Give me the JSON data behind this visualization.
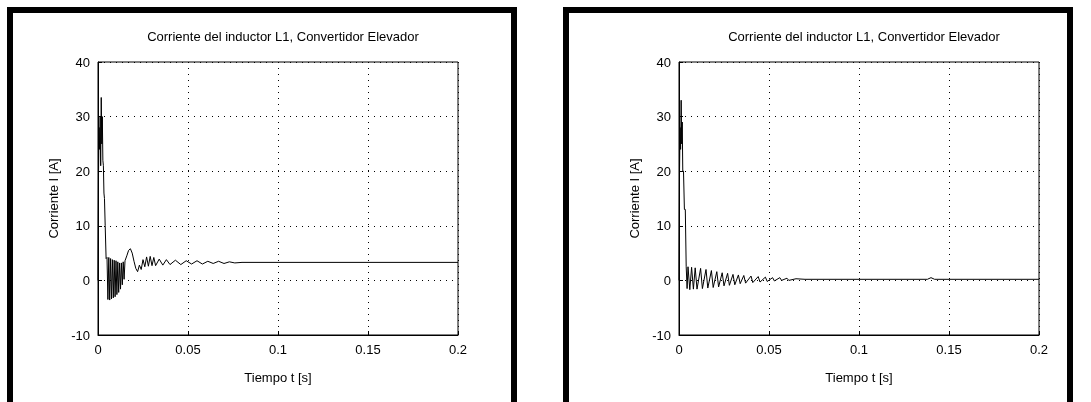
{
  "chart_data": [
    {
      "type": "line",
      "title": "Corriente del inductor L1, Convertidor Elevador",
      "xlabel": "Tiempo t [s]",
      "ylabel": "Corriente I [A]",
      "xlim": [
        0,
        0.2
      ],
      "xticks": [
        0,
        0.05,
        0.1,
        0.15,
        0.2
      ],
      "ylim": [
        -10,
        40
      ],
      "yticks": [
        -10,
        0,
        10,
        20,
        30,
        40
      ],
      "grid": true,
      "marker": "none",
      "line_style": "solid",
      "series": [
        {
          "color": "#000000",
          "x": [
            0,
            0.0003,
            0.0006,
            0.0009,
            0.0012,
            0.0015,
            0.0018,
            0.0021,
            0.0024,
            0.0027,
            0.003,
            0.0033,
            0.0036,
            0.004,
            0.0045,
            0.005,
            0.0055,
            0.006,
            0.0065,
            0.007,
            0.0075,
            0.008,
            0.0085,
            0.009,
            0.0095,
            0.01,
            0.0105,
            0.011,
            0.0115,
            0.012,
            0.0125,
            0.013,
            0.0135,
            0.014,
            0.0145,
            0.015,
            0.016,
            0.017,
            0.018,
            0.019,
            0.02,
            0.021,
            0.022,
            0.023,
            0.024,
            0.025,
            0.026,
            0.027,
            0.028,
            0.029,
            0.03,
            0.031,
            0.032,
            0.034,
            0.036,
            0.038,
            0.04,
            0.043,
            0.046,
            0.049,
            0.052,
            0.055,
            0.058,
            0.061,
            0.064,
            0.067,
            0.07,
            0.073,
            0.076,
            0.08,
            0.2
          ],
          "values": [
            0,
            20,
            28,
            24,
            30,
            21,
            33.5,
            25,
            30,
            22,
            21,
            16,
            15,
            10,
            4,
            4.2,
            -3.5,
            4.2,
            -3.6,
            4,
            -3.4,
            3.8,
            -3.2,
            3.7,
            -3,
            3.6,
            -2.6,
            3.4,
            -2.2,
            3.2,
            -1.6,
            3.2,
            -0.8,
            3.4,
            0.2,
            3.6,
            4.5,
            5.5,
            5.8,
            5,
            3.5,
            2.2,
            1.6,
            2.8,
            2,
            3.8,
            2.5,
            4.3,
            2.6,
            4.4,
            2.7,
            4.2,
            2.7,
            3.9,
            2.8,
            3.8,
            2.9,
            3.7,
            2.9,
            3.6,
            3,
            3.6,
            3,
            3.5,
            3.1,
            3.5,
            3.1,
            3.4,
            3.2,
            3.3,
            3.3
          ]
        }
      ]
    },
    {
      "type": "line",
      "title": "Corriente del inductor L1, Convertidor Elevador",
      "xlabel": "Tiempo t [s]",
      "ylabel": "Corriente I [A]",
      "xlim": [
        0,
        0.2
      ],
      "xticks": [
        0,
        0.05,
        0.1,
        0.15,
        0.2
      ],
      "ylim": [
        -10,
        40
      ],
      "yticks": [
        -10,
        0,
        10,
        20,
        30,
        40
      ],
      "grid": true,
      "marker": "none",
      "line_style": "solid",
      "series": [
        {
          "color": "#000000",
          "x": [
            0,
            0.0003,
            0.0006,
            0.0009,
            0.0012,
            0.0015,
            0.0018,
            0.0021,
            0.0025,
            0.003,
            0.0035,
            0.004,
            0.0045,
            0.005,
            0.006,
            0.007,
            0.008,
            0.009,
            0.01,
            0.012,
            0.013,
            0.015,
            0.016,
            0.018,
            0.019,
            0.021,
            0.022,
            0.024,
            0.025,
            0.027,
            0.028,
            0.03,
            0.031,
            0.033,
            0.034,
            0.036,
            0.037,
            0.04,
            0.041,
            0.044,
            0.045,
            0.048,
            0.049,
            0.052,
            0.053,
            0.056,
            0.057,
            0.06,
            0.061,
            0.065,
            0.07,
            0.138,
            0.14,
            0.142,
            0.2
          ],
          "values": [
            0,
            20,
            28,
            24,
            33,
            25,
            29,
            20,
            20,
            13,
            13,
            2.5,
            -1.5,
            2.5,
            -1.7,
            2.4,
            -1.6,
            2.3,
            -1.6,
            2.2,
            -1.5,
            2,
            -1.4,
            1.8,
            -1.3,
            1.6,
            -1.2,
            1.4,
            -1,
            1.3,
            -0.9,
            1.1,
            -0.8,
            1,
            -0.6,
            0.9,
            -0.5,
            0.8,
            -0.4,
            0.7,
            -0.3,
            0.6,
            -0.2,
            0.5,
            -0.1,
            0.5,
            0,
            0.4,
            0,
            0.3,
            0.2,
            0.2,
            0.5,
            0.2,
            0.2
          ]
        }
      ]
    }
  ]
}
